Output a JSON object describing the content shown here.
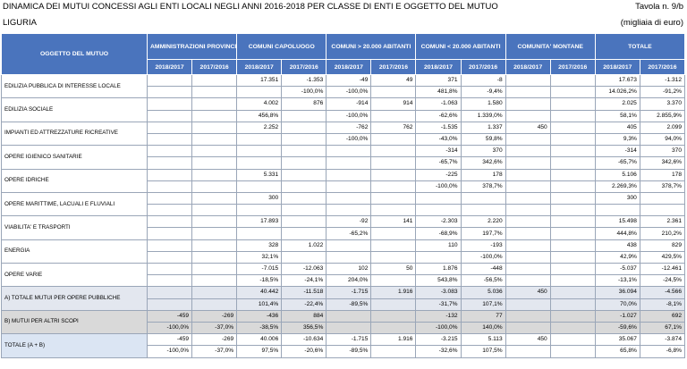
{
  "header": {
    "title": "DINAMICA DEI MUTUI CONCESSI AGLI ENTI LOCALI NEGLI ANNI  2016-2018 PER CLASSE DI ENTI E OGGETTO DEL MUTUO",
    "table_no": "Tavola n. 9/b",
    "region": "LIGURIA",
    "unit": "(migliaia di euro)"
  },
  "table": {
    "first_header": "OGGETTO DEL MUTUO",
    "groups": [
      "AMMINISTRAZIONI PROVINCIALI",
      "COMUNI CAPOLUOGO",
      "COMUNI > 20.000 ABITANTI",
      "COMUNI < 20.000 ABITANTI",
      "COMUNITA' MONTANE",
      "TOTALE"
    ],
    "periods": [
      "2018/2017",
      "2017/2016"
    ],
    "rows": [
      {
        "label": "EDILIZIA PUBBLICA DI INTERESSE LOCALE",
        "values": [
          [
            null,
            null,
            "17.351",
            "-1.353",
            "-49",
            "49",
            "371",
            "-8",
            null,
            null,
            "17.673",
            "-1.312"
          ],
          [
            null,
            null,
            null,
            "-100,0%",
            "-100,0%",
            null,
            "481,8%",
            "-9,4%",
            null,
            null,
            "14.026,2%",
            "-91,2%"
          ]
        ]
      },
      {
        "label": "EDILIZIA SOCIALE",
        "values": [
          [
            null,
            null,
            "4.002",
            "876",
            "-914",
            "914",
            "-1.063",
            "1.580",
            null,
            null,
            "2.025",
            "3.370"
          ],
          [
            null,
            null,
            "456,8%",
            null,
            "-100,0%",
            null,
            "-62,6%",
            "1.339,0%",
            null,
            null,
            "58,1%",
            "2.855,9%"
          ]
        ]
      },
      {
        "label": "IMPIANTI ED ATTREZZATURE RICREATIVE",
        "values": [
          [
            null,
            null,
            "2.252",
            null,
            "-762",
            "762",
            "-1.535",
            "1.337",
            "450",
            null,
            "405",
            "2.099"
          ],
          [
            null,
            null,
            null,
            null,
            "-100,0%",
            null,
            "-43,0%",
            "59,8%",
            null,
            null,
            "9,3%",
            "94,0%"
          ]
        ]
      },
      {
        "label": "OPERE IGIENICO SANITARIE",
        "values": [
          [
            null,
            null,
            null,
            null,
            null,
            null,
            "-314",
            "370",
            null,
            null,
            "-314",
            "370"
          ],
          [
            null,
            null,
            null,
            null,
            null,
            null,
            "-65,7%",
            "342,6%",
            null,
            null,
            "-65,7%",
            "342,6%"
          ]
        ]
      },
      {
        "label": "OPERE IDRICHE",
        "values": [
          [
            null,
            null,
            "5.331",
            null,
            null,
            null,
            "-225",
            "178",
            null,
            null,
            "5.106",
            "178"
          ],
          [
            null,
            null,
            null,
            null,
            null,
            null,
            "-100,0%",
            "378,7%",
            null,
            null,
            "2.269,3%",
            "378,7%"
          ]
        ]
      },
      {
        "label": "OPERE MARITTIME, LACUALI E FLUVIALI",
        "values": [
          [
            null,
            null,
            "300",
            null,
            null,
            null,
            null,
            null,
            null,
            null,
            "300",
            null
          ],
          [
            null,
            null,
            null,
            null,
            null,
            null,
            null,
            null,
            null,
            null,
            null,
            null
          ]
        ]
      },
      {
        "label": "VIABILITA' E TRASPORTI",
        "values": [
          [
            null,
            null,
            "17.893",
            null,
            "-92",
            "141",
            "-2.303",
            "2.220",
            null,
            null,
            "15.498",
            "2.361"
          ],
          [
            null,
            null,
            null,
            null,
            "-65,2%",
            null,
            "-68,9%",
            "197,7%",
            null,
            null,
            "444,8%",
            "210,2%"
          ]
        ]
      },
      {
        "label": "ENERGIA",
        "values": [
          [
            null,
            null,
            "328",
            "1.022",
            null,
            null,
            "110",
            "-193",
            null,
            null,
            "438",
            "829"
          ],
          [
            null,
            null,
            "32,1%",
            null,
            null,
            null,
            null,
            "-100,0%",
            null,
            null,
            "42,9%",
            "429,5%"
          ]
        ]
      },
      {
        "label": "OPERE VARIE",
        "values": [
          [
            null,
            null,
            "-7.015",
            "-12.063",
            "102",
            "50",
            "1.876",
            "-448",
            null,
            null,
            "-5.037",
            "-12.461"
          ],
          [
            null,
            null,
            "-18,5%",
            "-24,1%",
            "204,0%",
            null,
            "543,8%",
            "-56,5%",
            null,
            null,
            "-13,1%",
            "-24,5%"
          ]
        ]
      },
      {
        "label": "A) TOTALE MUTUI PER OPERE PUBBLICHE",
        "values": [
          [
            null,
            null,
            "40.442",
            "-11.518",
            "-1.715",
            "1.916",
            "-3.083",
            "5.036",
            "450",
            null,
            "36.094",
            "-4.566"
          ],
          [
            null,
            null,
            "101,4%",
            "-22,4%",
            "-89,5%",
            null,
            "-31,7%",
            "107,1%",
            null,
            null,
            "70,0%",
            "-8,1%"
          ]
        ]
      },
      {
        "label": "B) MUTUI PER ALTRI SCOPI",
        "values": [
          [
            "-459",
            "-269",
            "-436",
            "884",
            null,
            null,
            "-132",
            "77",
            null,
            null,
            "-1.027",
            "692"
          ],
          [
            "-100,0%",
            "-37,0%",
            "-38,5%",
            "356,5%",
            null,
            null,
            "-100,0%",
            "140,0%",
            null,
            null,
            "-59,6%",
            "67,1%"
          ]
        ]
      },
      {
        "label": "TOTALE (A + B)",
        "values": [
          [
            "-459",
            "-269",
            "40.006",
            "-10.634",
            "-1.715",
            "1.916",
            "-3.215",
            "5.113",
            "450",
            null,
            "35.067",
            "-3.874"
          ],
          [
            "-100,0%",
            "-37,0%",
            "97,5%",
            "-20,6%",
            "-89,5%",
            null,
            "-32,6%",
            "107,5%",
            null,
            null,
            "65,8%",
            "-6,8%"
          ]
        ]
      }
    ]
  }
}
